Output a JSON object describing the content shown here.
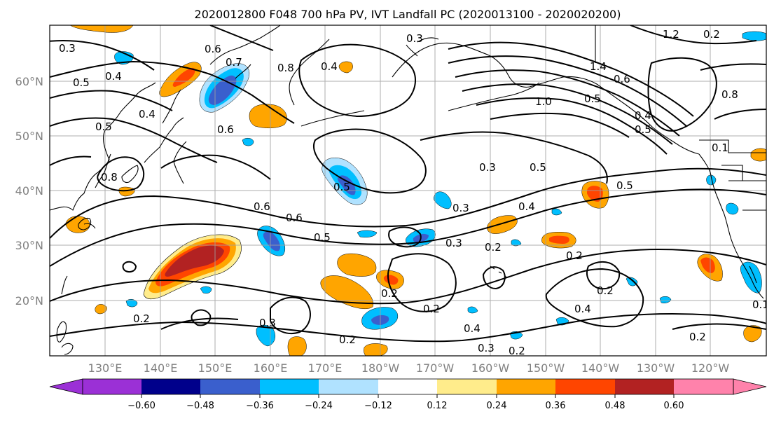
{
  "figure": {
    "title": "2020012800 F048 700 hPa PV, IVT Landfall PC (2020013100 - 2020020200)"
  },
  "axes": {
    "lat_ticks": [
      "20°N",
      "30°N",
      "40°N",
      "50°N",
      "60°N"
    ],
    "lon_ticks": [
      "130°E",
      "140°E",
      "150°E",
      "160°E",
      "170°E",
      "180°W",
      "170°W",
      "160°W",
      "150°W",
      "140°W",
      "130°W",
      "120°W"
    ]
  },
  "colorbar": {
    "colors": [
      "#9b30d6",
      "#00008b",
      "#3a5fcd",
      "#00bfff",
      "#b0e2ff",
      "#ffffff",
      "#ffec8b",
      "#ffa500",
      "#ff4500",
      "#b22222",
      "#ff82ab"
    ],
    "tick_labels": [
      "−0.60",
      "−0.48",
      "−0.36",
      "−0.24",
      "−0.12",
      "0.12",
      "0.24",
      "0.36",
      "0.48",
      "0.60"
    ]
  },
  "contour_labels": [
    "0.3",
    "0.5",
    "0.4",
    "0.6",
    "0.7",
    "0.8",
    "0.5",
    "0.4",
    "0.6",
    "0.8",
    "0.4",
    "0.3",
    "1.0",
    "1.4",
    "0.5",
    "0.6",
    "1.2",
    "0.2",
    "0.8",
    "0.5",
    "0.3",
    "0.5",
    "0.4",
    "0.3",
    "0.5",
    "0.6",
    "0.6",
    "0.5",
    "0.3",
    "0.2",
    "0.2",
    "0.2",
    "0.3",
    "0.2",
    "0.2",
    "0.4",
    "0.3",
    "0.2",
    "0.2",
    "0.4",
    "0.2",
    "0.2",
    "0.1",
    "0.1",
    "0.5",
    "0.4"
  ]
}
